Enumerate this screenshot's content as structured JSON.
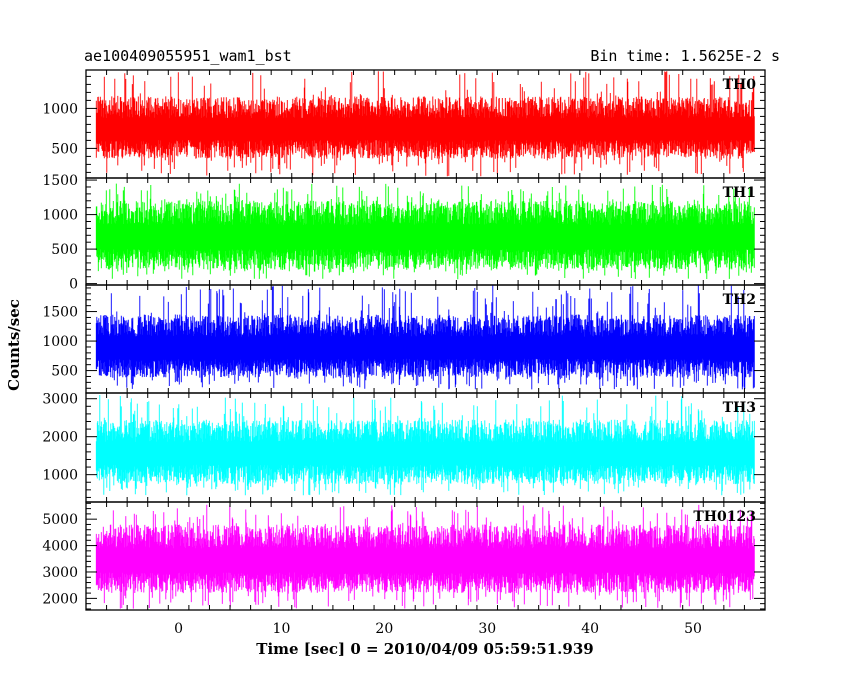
{
  "header": {
    "left_title": "ae100409055951_wam1_bst",
    "right_title": "Bin time: 1.5625E-2 s"
  },
  "chart_data": {
    "type": "line",
    "title": "ae100409055951_wam1_bst",
    "subtitle": "Bin time: 1.5625E-2 s",
    "xlabel": "Time [sec] 0 = 2010/04/09 05:59:51.939",
    "ylabel": "Counts/sec",
    "xlim": [
      -9,
      57
    ],
    "x_ticks": [
      0,
      10,
      20,
      30,
      40,
      50
    ],
    "x_tick_labels": [
      "0",
      "10",
      "20",
      "30",
      "40",
      "50"
    ],
    "data_x_range": [
      -8,
      56
    ],
    "grid": false,
    "panels": [
      {
        "name": "TH0",
        "color": "#ff0000",
        "ylim": [
          130,
          1480
        ],
        "y_ticks": [
          500,
          1000
        ],
        "y_tick_labels": [
          "500",
          "1000"
        ],
        "typical_range": [
          370,
          1150
        ],
        "extreme_range": [
          150,
          1470
        ]
      },
      {
        "name": "TH1",
        "color": "#00ff00",
        "ylim": [
          -20,
          1530
        ],
        "y_ticks": [
          0,
          500,
          1000,
          1500
        ],
        "y_tick_labels": [
          "0",
          "500",
          "1000",
          "1500"
        ],
        "typical_range": [
          200,
          1200
        ],
        "extreme_range": [
          60,
          1450
        ]
      },
      {
        "name": "TH2",
        "color": "#0000ff",
        "ylim": [
          120,
          1950
        ],
        "y_ticks": [
          500,
          1000,
          1500
        ],
        "y_tick_labels": [
          "500",
          "1000",
          "1500"
        ],
        "typical_range": [
          380,
          1450
        ],
        "extreme_range": [
          180,
          1950
        ]
      },
      {
        "name": "TH3",
        "color": "#00ffff",
        "ylim": [
          280,
          3150
        ],
        "y_ticks": [
          1000,
          2000,
          3000
        ],
        "y_tick_labels": [
          "1000",
          "2000",
          "3000"
        ],
        "typical_range": [
          750,
          2450
        ],
        "extreme_range": [
          450,
          3100
        ]
      },
      {
        "name": "TH0123",
        "color": "#ff00ff",
        "ylim": [
          1560,
          5650
        ],
        "y_ticks": [
          2000,
          3000,
          4000,
          5000
        ],
        "y_tick_labels": [
          "2000",
          "3000",
          "4000",
          "5000"
        ],
        "typical_range": [
          2200,
          4800
        ],
        "extreme_range": [
          1600,
          5550
        ]
      }
    ]
  }
}
